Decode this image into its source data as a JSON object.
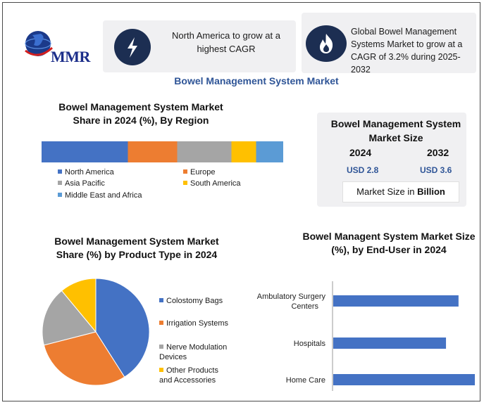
{
  "logo": {
    "text": "MMR"
  },
  "callouts": [
    {
      "text": "North America to grow at a highest CAGR",
      "icon": "lightning-icon"
    },
    {
      "text": "Global Bowel Management Systems Market to grow at a CAGR of 3.2% during 2025-2032",
      "icon": "flame-icon"
    }
  ],
  "main_title": "Bowel Management System Market",
  "market_size": {
    "title": "Bowel Management System Market Size",
    "years": [
      "2024",
      "2032"
    ],
    "values": [
      "USD 2.8",
      "USD 3.6"
    ],
    "note_prefix": "Market Size in ",
    "note_bold": "Billion"
  },
  "colors": {
    "north_america": "#4472c4",
    "europe": "#ed7d31",
    "asia_pacific": "#a5a5a5",
    "south_america": "#ffc000",
    "mea": "#5b9bd5",
    "brand_dark": "#1c2e52",
    "title_blue": "#2f5597"
  },
  "chart_data": [
    {
      "type": "bar",
      "orientation": "horizontal-stacked",
      "title": "Bowel Management System Market Share in 2024 (%), By Region",
      "series": [
        {
          "name": "North America",
          "values": [
            35
          ]
        },
        {
          "name": "Europe",
          "values": [
            20
          ]
        },
        {
          "name": "Asia Pacific",
          "values": [
            22
          ]
        },
        {
          "name": "South America",
          "values": [
            10
          ]
        },
        {
          "name": "Middle East and Africa",
          "values": [
            11
          ]
        }
      ],
      "legend": "bottom"
    },
    {
      "type": "pie",
      "title": "Bowel Management System Market Share (%) by Product Type in 2024",
      "categories": [
        "Colostomy Bags",
        "Irrigation Systems",
        "Nerve Modulation Devices",
        "Other Products and Accessories"
      ],
      "values": [
        41,
        30,
        18,
        11
      ],
      "legend": "right"
    },
    {
      "type": "bar",
      "orientation": "horizontal",
      "title": "Bowel Managent System Market Size (%), by End-User in 2024",
      "categories": [
        "Ambulatory Surgery Centers",
        "Hospitals",
        "Home Care"
      ],
      "values": [
        30,
        27,
        41
      ],
      "xlim": [
        0,
        50
      ],
      "grid": false
    }
  ]
}
